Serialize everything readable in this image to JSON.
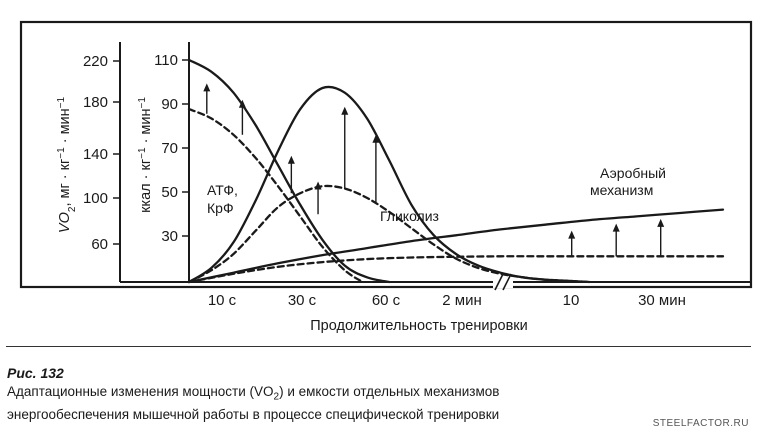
{
  "chart_data": {
    "type": "line",
    "xlabel": "Продолжительность тренировки",
    "x_ticks": [
      "10 с",
      "30 с",
      "60 с",
      "2 мин",
      "10",
      "30 мин"
    ],
    "y_left_ticks": [
      "220",
      "180",
      "140",
      "100",
      "60"
    ],
    "y_left_label_parts": [
      "VO",
      "2",
      ", мг · кг",
      "−1",
      " · мин",
      "−1"
    ],
    "y_right_ticks": [
      "110",
      "90",
      "70",
      "50",
      "30"
    ],
    "y_right_label_parts": [
      "ккал · кг",
      "−1",
      " · мин",
      "−1"
    ],
    "ylim_right": [
      15,
      115
    ],
    "annotations": {
      "atp": [
        "АТФ,",
        "КрФ"
      ],
      "glycolysis": "Гликолиз",
      "aerobic": [
        "Аэробный",
        "механизм"
      ]
    },
    "series": [
      {
        "name": "АТФ, КрФ",
        "style": "solid",
        "x": [
          0,
          0.5,
          1,
          1.5,
          2,
          2.5,
          3,
          3.5,
          4,
          4.5
        ],
        "y": [
          110,
          105,
          96,
          82,
          65,
          48,
          33,
          22,
          17,
          15
        ]
      },
      {
        "name": "АТФ, КрФ",
        "style": "dashed",
        "x": [
          0,
          0.5,
          1,
          1.5,
          2,
          2.5,
          3,
          3.5,
          3.9
        ],
        "y": [
          89,
          85,
          78,
          68,
          56,
          43,
          30,
          20,
          15
        ]
      },
      {
        "name": "Гликолиз",
        "style": "solid",
        "x": [
          0,
          0.5,
          1,
          1.5,
          2,
          2.5,
          3,
          3.5,
          4,
          4.5,
          5,
          5.5,
          6,
          6.5,
          7,
          7.5,
          8,
          8.5,
          9
        ],
        "y": [
          15,
          21,
          32,
          50,
          71,
          89,
          98,
          96,
          85,
          67,
          48,
          35,
          27,
          22,
          19,
          17,
          16,
          15.5,
          15
        ]
      },
      {
        "name": "Гликолиз",
        "style": "dashed",
        "x": [
          0,
          0.5,
          1,
          1.5,
          2,
          2.5,
          3,
          3.5,
          4,
          4.5,
          5,
          5.5,
          6,
          6.5,
          7,
          7.5,
          8,
          8.5,
          9
        ],
        "y": [
          15,
          20,
          27,
          37,
          47,
          53,
          56,
          55,
          51,
          45,
          38,
          31,
          25,
          21,
          18.5,
          17,
          16,
          15.5,
          15
        ]
      },
      {
        "name": "Аэробный механизм",
        "style": "solid",
        "x": [
          0,
          1,
          2,
          3,
          4,
          5,
          6,
          7,
          8,
          9,
          10,
          11,
          12
        ],
        "y": [
          15,
          19,
          23,
          26.5,
          29.5,
          32.5,
          35,
          37.5,
          39.5,
          41.5,
          43,
          44.5,
          46
        ]
      },
      {
        "name": "Аэробный механизм",
        "style": "dashed",
        "x": [
          0,
          1,
          2,
          3,
          4,
          5,
          6,
          7,
          8,
          9,
          10,
          11,
          12
        ],
        "y": [
          15,
          18.5,
          21.5,
          23.5,
          24.8,
          25.5,
          25.8,
          26,
          26,
          26,
          26,
          26,
          26
        ]
      }
    ],
    "arrows": [
      {
        "x": 0.4,
        "from": 87,
        "to": 100
      },
      {
        "x": 1.2,
        "from": 78,
        "to": 93
      },
      {
        "x": 2.3,
        "from": 53,
        "to": 69
      },
      {
        "x": 2.9,
        "from": 44,
        "to": 58
      },
      {
        "x": 3.5,
        "from": 55,
        "to": 90
      },
      {
        "x": 4.2,
        "from": 49,
        "to": 78
      },
      {
        "x": 8.6,
        "from": 26,
        "to": 37
      },
      {
        "x": 9.6,
        "from": 26,
        "to": 40
      },
      {
        "x": 10.6,
        "from": 26,
        "to": 42
      }
    ]
  },
  "caption": {
    "figure": "Рис. 132",
    "line1_a": "Адаптационные изменения мощности (VO",
    "line1_sub": "2",
    "line1_b": ") и емкости отдельных механизмов",
    "line2": "энергообеспечения мышечной работы в процессе специфической тренировки"
  },
  "watermark": "STEELFACTOR.RU"
}
